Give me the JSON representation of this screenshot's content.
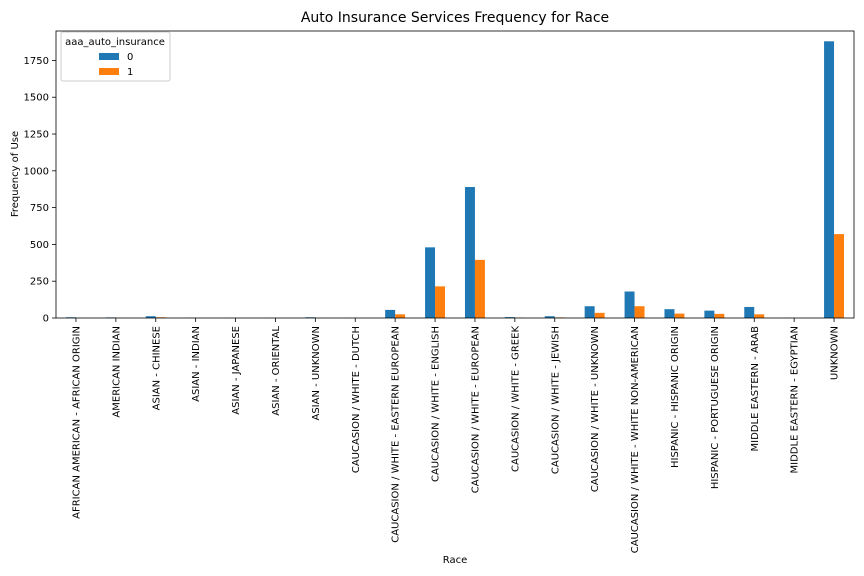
{
  "chart_data": {
    "type": "bar",
    "title": "Auto Insurance Services Frequency for Race",
    "xlabel": "Race",
    "ylabel": "Frequency of Use",
    "ylim": [
      0,
      1950
    ],
    "yticks": [
      0,
      250,
      500,
      750,
      1000,
      1250,
      1500,
      1750
    ],
    "grid": false,
    "legend": {
      "title": "aaa_auto_insurance",
      "position": "top-left"
    },
    "categories": [
      "AFRICAN AMERICAN - AFRICAN ORIGIN",
      "AMERICAN INDIAN",
      "ASIAN - CHINESE",
      "ASIAN - INDIAN",
      "ASIAN - JAPANESE",
      "ASIAN - ORIENTAL",
      "ASIAN - UNKNOWN",
      "CAUCASION / WHITE - DUTCH",
      "CAUCASION / WHITE - EASTERN EUROPEAN",
      "CAUCASION / WHITE - ENGLISH",
      "CAUCASION / WHITE - EUROPEAN",
      "CAUCASION / WHITE - GREEK",
      "CAUCASION / WHITE - JEWISH",
      "CAUCASION / WHITE - UNKNOWN",
      "CAUCASION / WHITE - WHITE NON-AMERICAN",
      "HISPANIC - HISPANIC ORIGIN",
      "HISPANIC - PORTUGUESE ORIGIN",
      "MIDDLE EASTERN - ARAB",
      "MIDDLE EASTERN - EGYPTIAN",
      "UNKNOWN"
    ],
    "series": [
      {
        "name": "0",
        "color": "#1f77b4",
        "values": [
          5,
          4,
          12,
          2,
          1,
          1,
          5,
          1,
          55,
          480,
          890,
          6,
          12,
          80,
          180,
          60,
          50,
          75,
          1,
          1880
        ]
      },
      {
        "name": "1",
        "color": "#ff7f0e",
        "values": [
          1,
          1,
          5,
          0,
          0,
          0,
          1,
          0,
          25,
          215,
          395,
          2,
          4,
          35,
          80,
          30,
          28,
          25,
          0,
          570
        ]
      }
    ]
  }
}
